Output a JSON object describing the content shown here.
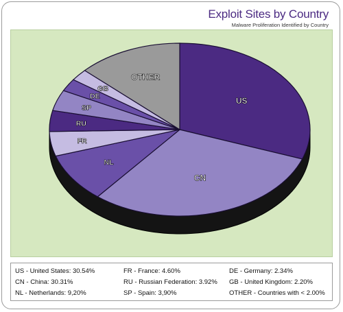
{
  "header": {
    "title": "Exploit Sites by Country",
    "subtitle": "Malware Proliferation Identified by Country"
  },
  "chart_data": {
    "type": "pie",
    "title": "Exploit Sites by Country",
    "subtitle": "Malware Proliferation Identified by Country",
    "slices": [
      {
        "label": "US",
        "name": "United States",
        "value": 30.54,
        "color": "#4b2a82"
      },
      {
        "label": "CN",
        "name": "China",
        "value": 30.31,
        "color": "#9385c4"
      },
      {
        "label": "NL",
        "name": "Netherlands",
        "value": 9.2,
        "color": "#6a50a8"
      },
      {
        "label": "FR",
        "name": "France",
        "value": 4.6,
        "color": "#c5bce2"
      },
      {
        "label": "RU",
        "name": "Russian Federation",
        "value": 3.92,
        "color": "#4b2a82"
      },
      {
        "label": "SP",
        "name": "Spain",
        "value": 3.9,
        "color": "#9385c4"
      },
      {
        "label": "DE",
        "name": "Germany",
        "value": 2.34,
        "color": "#6a50a8"
      },
      {
        "label": "GB",
        "name": "United Kingdom",
        "value": 2.2,
        "color": "#c5bce2"
      },
      {
        "label": "OTHER",
        "name": "Countries with < 2.00%",
        "value": 13.0,
        "color": "#9a9a9a"
      }
    ]
  },
  "legend": {
    "items": [
      {
        "code": "US",
        "text": "United States: 30.54%"
      },
      {
        "code": "CN",
        "text": "China: 30.31%"
      },
      {
        "code": "NL",
        "text": "Netherlands: 9,20%"
      },
      {
        "code": "FR",
        "text": "France: 4.60%"
      },
      {
        "code": "RU",
        "text": "Russian Federation: 3.92%"
      },
      {
        "code": "SP",
        "text": "Spain: 3,90%"
      },
      {
        "code": "DE",
        "text": "Germany: 2.34%"
      },
      {
        "code": "GB",
        "text": "United Kingdom: 2.20%"
      },
      {
        "code": "OTHER",
        "text": "Countries with < 2.00%"
      }
    ]
  }
}
